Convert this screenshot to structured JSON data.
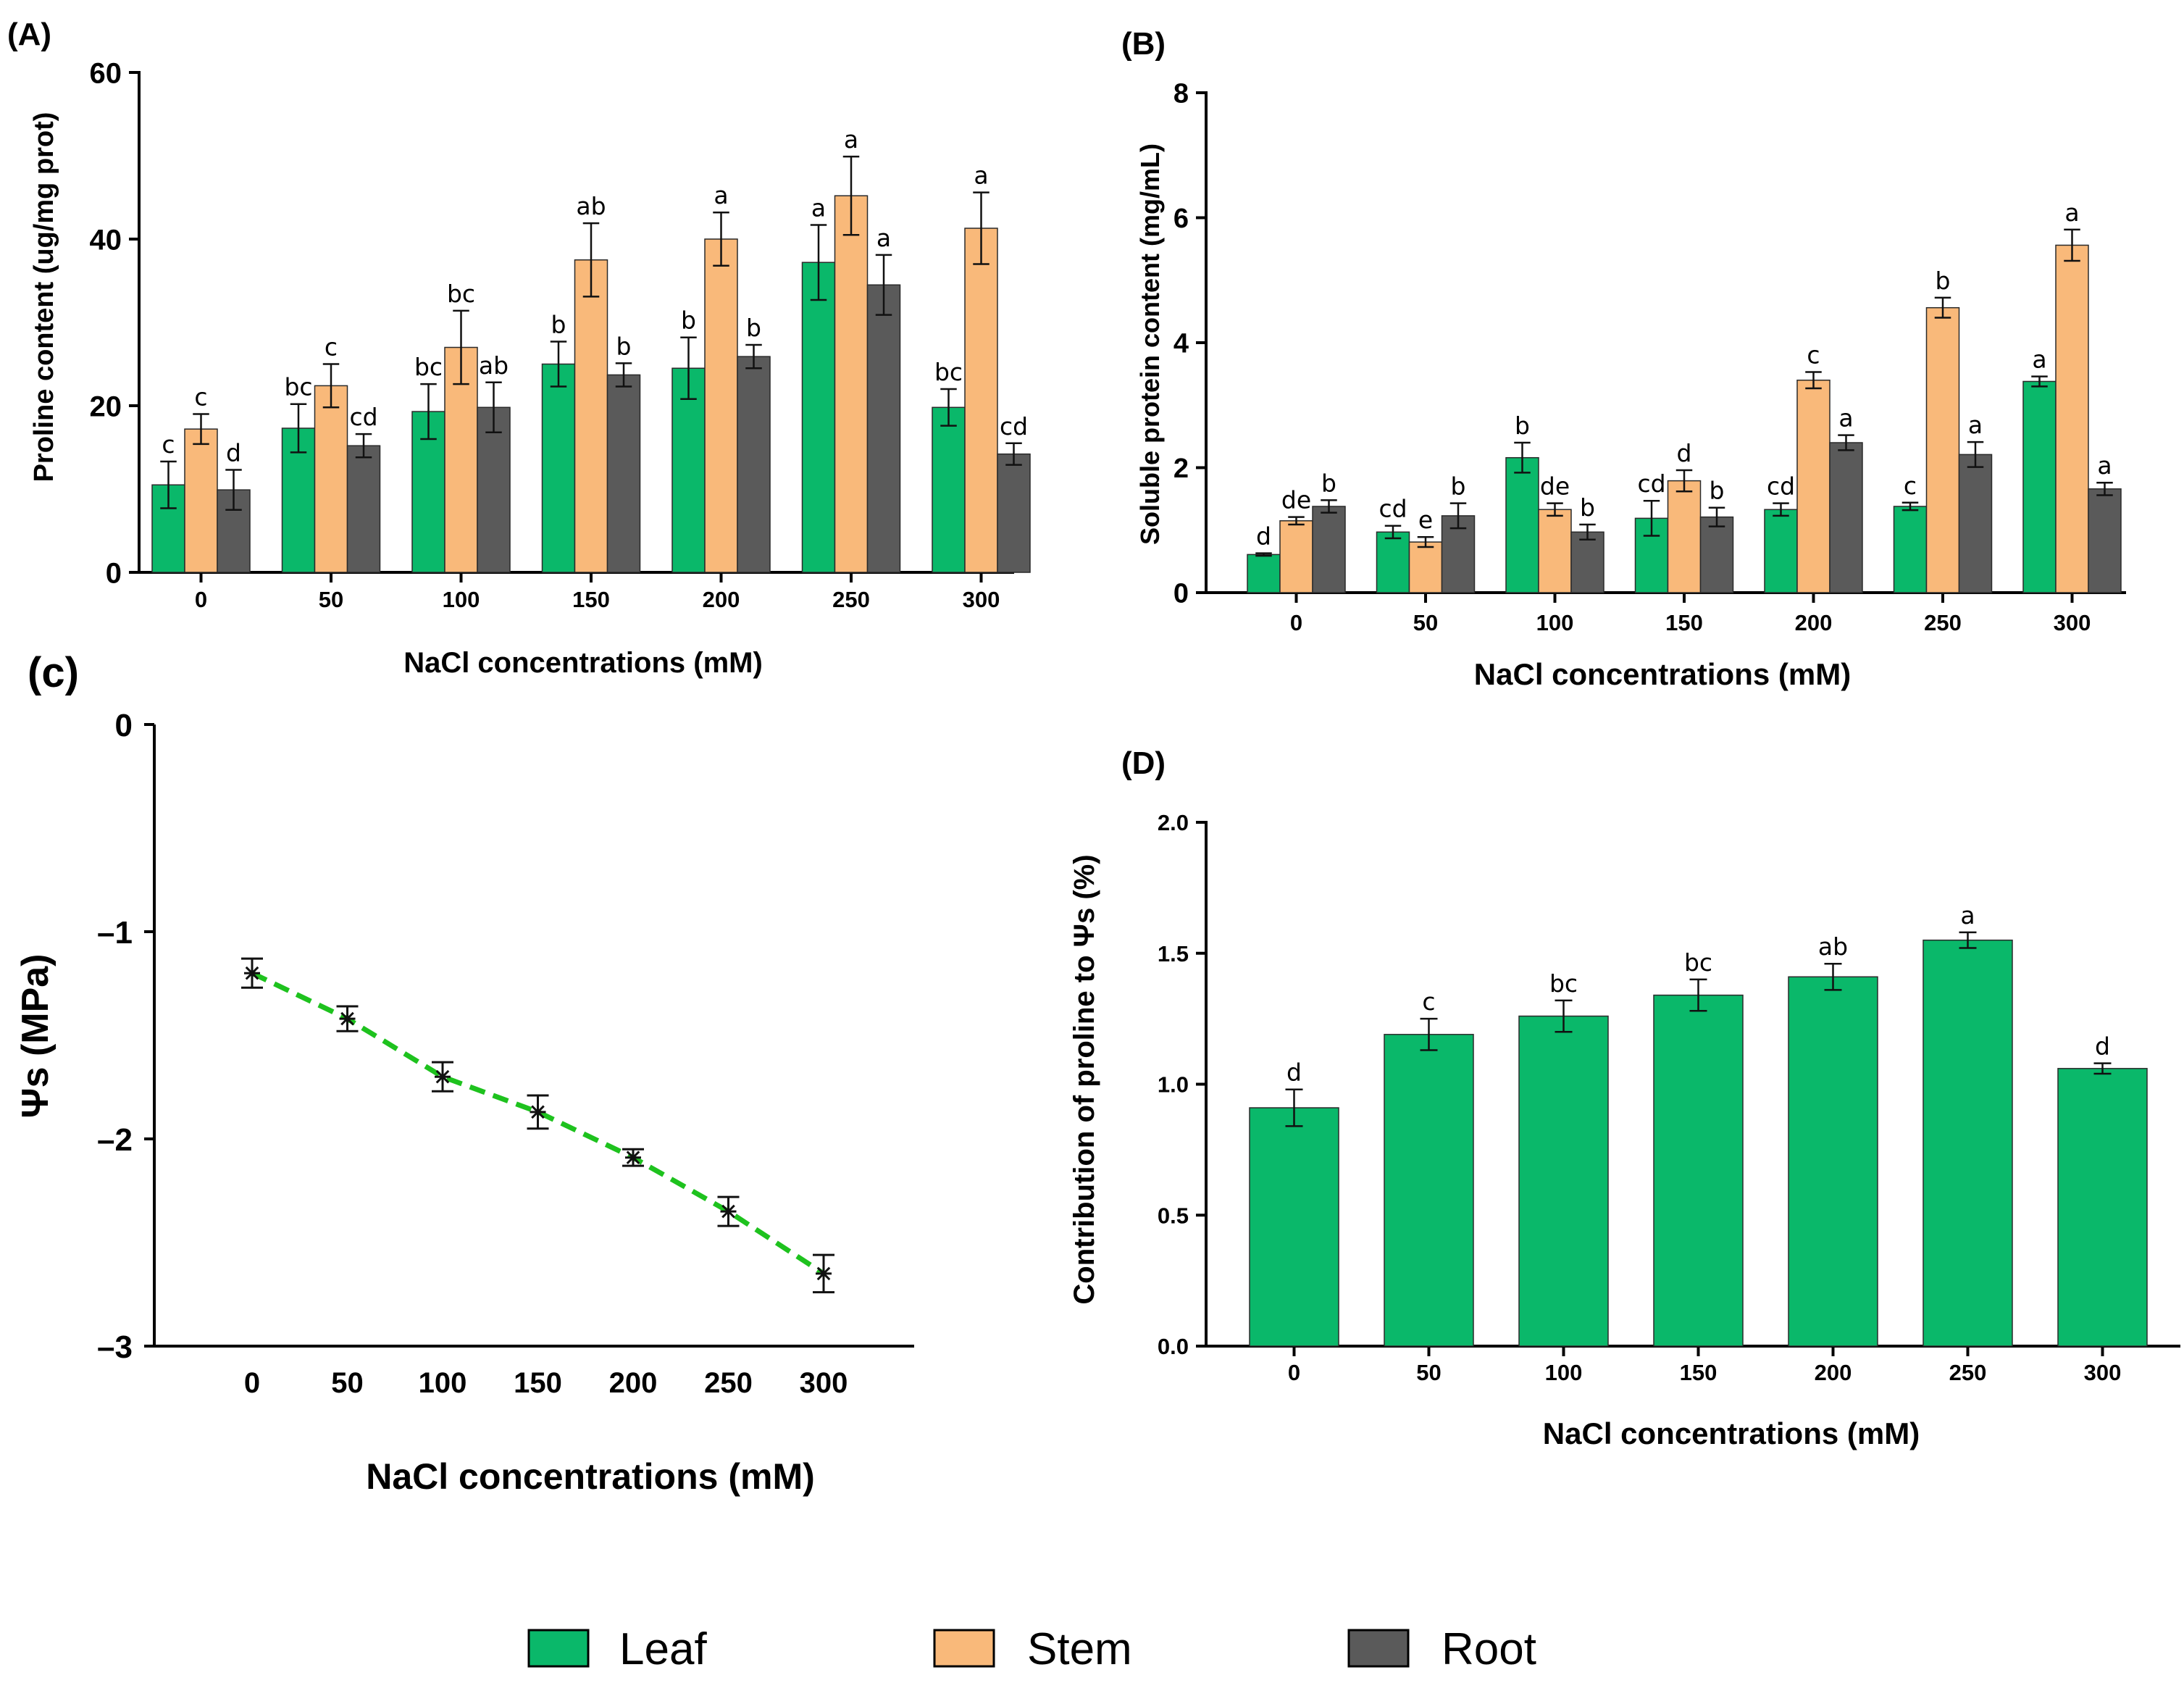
{
  "colors": {
    "leaf": "#0ab86a",
    "stem": "#f9b97a",
    "root": "#5a5a5a",
    "line": "#1ec21e",
    "axis": "#000000"
  },
  "legend": {
    "items": [
      "Leaf",
      "Stem",
      "Root"
    ]
  },
  "chart_data": [
    {
      "id": "A",
      "panel_label": "(A)",
      "type": "bar",
      "title": "",
      "xlabel": "NaCl concentrations (mM)",
      "ylabel": "Proline content (ug/mg prot)",
      "categories": [
        "0",
        "50",
        "100",
        "150",
        "200",
        "250",
        "300"
      ],
      "ylim": [
        0,
        60
      ],
      "yticks": [
        "0",
        "20",
        "40",
        "60"
      ],
      "series": [
        {
          "name": "Leaf",
          "values": [
            10.5,
            17.3,
            19.3,
            25.0,
            24.5,
            37.2,
            19.8
          ],
          "errors": [
            2.8,
            2.9,
            3.3,
            2.7,
            3.7,
            4.5,
            2.2
          ],
          "letters": [
            "c",
            "bc",
            "bc",
            "b",
            "b",
            "a",
            "bc"
          ]
        },
        {
          "name": "Stem",
          "values": [
            17.2,
            22.4,
            27.0,
            37.5,
            40.0,
            45.2,
            41.3
          ],
          "errors": [
            1.8,
            2.6,
            4.4,
            4.4,
            3.2,
            4.7,
            4.3
          ],
          "letters": [
            "c",
            "c",
            "bc",
            "ab",
            "a",
            "a",
            "a"
          ]
        },
        {
          "name": "Root",
          "values": [
            9.9,
            15.2,
            19.8,
            23.7,
            25.9,
            34.5,
            14.2
          ],
          "errors": [
            2.4,
            1.4,
            3.0,
            1.4,
            1.4,
            3.6,
            1.3
          ],
          "letters": [
            "d",
            "cd",
            "ab",
            "b",
            "b",
            "a",
            "cd"
          ]
        }
      ]
    },
    {
      "id": "B",
      "panel_label": "(B)",
      "type": "bar",
      "title": "",
      "xlabel": "NaCl concentrations (mM)",
      "ylabel": "Soluble protein content (mg/mL)",
      "categories": [
        "0",
        "50",
        "100",
        "150",
        "200",
        "250",
        "300"
      ],
      "ylim": [
        0,
        8
      ],
      "yticks": [
        "0",
        "2",
        "4",
        "6",
        "8"
      ],
      "series": [
        {
          "name": "Leaf",
          "values": [
            0.61,
            0.97,
            2.16,
            1.19,
            1.33,
            1.38,
            3.38
          ],
          "errors": [
            0.02,
            0.1,
            0.24,
            0.28,
            0.1,
            0.06,
            0.08
          ],
          "letters": [
            "d",
            "cd",
            "b",
            "cd",
            "cd",
            "c",
            "a"
          ]
        },
        {
          "name": "Stem",
          "values": [
            1.15,
            0.81,
            1.33,
            1.79,
            3.4,
            4.56,
            5.56
          ],
          "errors": [
            0.06,
            0.08,
            0.1,
            0.17,
            0.13,
            0.16,
            0.25
          ],
          "letters": [
            "de",
            "e",
            "de",
            "d",
            "c",
            "b",
            "a"
          ]
        },
        {
          "name": "Root",
          "values": [
            1.38,
            1.23,
            0.97,
            1.21,
            2.4,
            2.21,
            1.66
          ],
          "errors": [
            0.1,
            0.2,
            0.12,
            0.15,
            0.12,
            0.2,
            0.1
          ],
          "letters": [
            "b",
            "b",
            "b",
            "b",
            "a",
            "a",
            "a"
          ]
        }
      ]
    },
    {
      "id": "C",
      "panel_label": "(c)",
      "type": "line",
      "title": "",
      "xlabel": "NaCl concentrations (mM)",
      "ylabel": "Ψs (MPa)",
      "x": [
        "0",
        "50",
        "100",
        "150",
        "200",
        "250",
        "300"
      ],
      "ylim": [
        -3,
        0
      ],
      "yticks": [
        "0",
        "–1",
        "–2",
        "–3"
      ],
      "series": [
        {
          "name": "Ψs",
          "values": [
            -1.2,
            -1.42,
            -1.7,
            -1.87,
            -2.09,
            -2.35,
            -2.65
          ],
          "errors": [
            0.07,
            0.06,
            0.07,
            0.08,
            0.04,
            0.07,
            0.09
          ]
        }
      ]
    },
    {
      "id": "D",
      "panel_label": "(D)",
      "type": "bar",
      "title": "",
      "xlabel": "NaCl concentrations (mM)",
      "ylabel": "Contribution of proline to Ψs (%)",
      "categories": [
        "0",
        "50",
        "100",
        "150",
        "200",
        "250",
        "300"
      ],
      "ylim": [
        0,
        2.0
      ],
      "yticks": [
        "0.0",
        "0.5",
        "1.0",
        "1.5",
        "2.0"
      ],
      "series": [
        {
          "name": "Contribution",
          "values": [
            0.91,
            1.19,
            1.26,
            1.34,
            1.41,
            1.55,
            1.06
          ],
          "errors": [
            0.07,
            0.06,
            0.06,
            0.06,
            0.05,
            0.03,
            0.02
          ],
          "letters": [
            "d",
            "c",
            "bc",
            "bc",
            "ab",
            "a",
            "d"
          ]
        }
      ]
    }
  ]
}
